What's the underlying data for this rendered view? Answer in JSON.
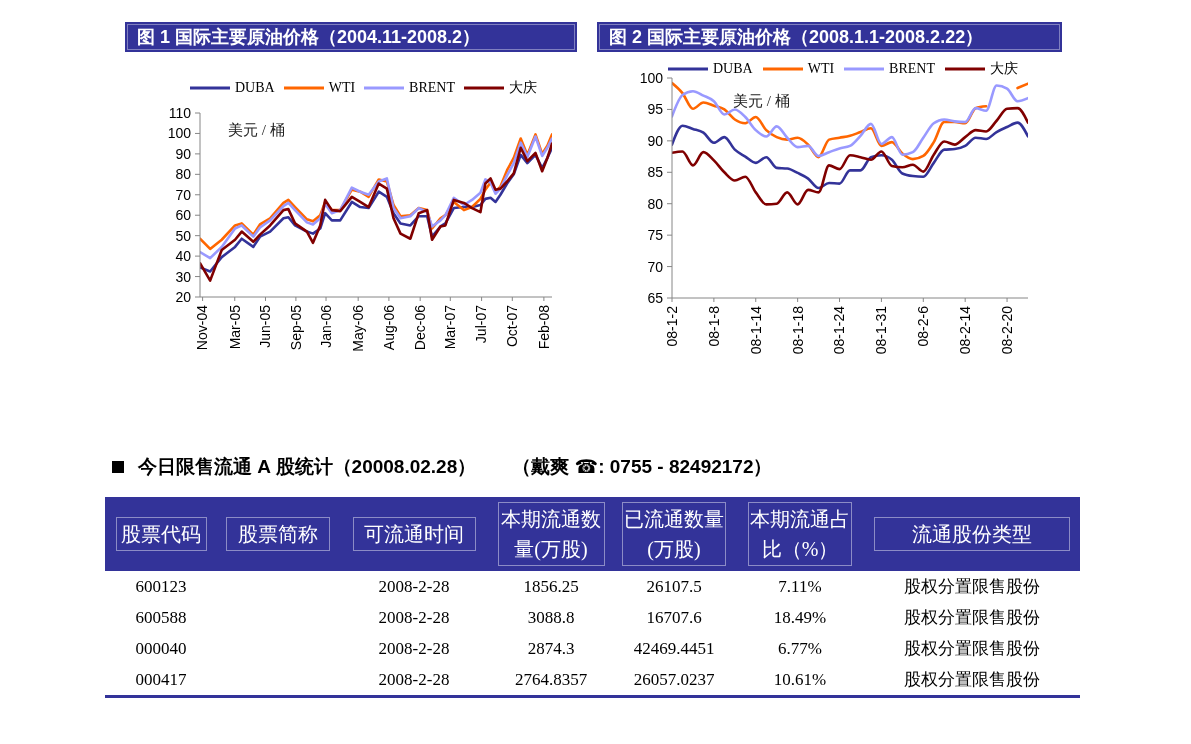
{
  "chart_data": [
    {
      "type": "line",
      "title": "图 1 国际主要原油价格（2004.11-2008.2）",
      "ylabel": "美元 / 桶",
      "x": [
        "2004-11-01",
        "2004-12-06",
        "2005-01-15",
        "2005-03-02",
        "2005-03-25",
        "2005-05-04",
        "2005-05-27",
        "2005-07-01",
        "2005-08-16",
        "2005-09-02",
        "2005-09-25",
        "2005-11-05",
        "2005-11-26",
        "2005-12-21",
        "2006-01-07",
        "2006-01-30",
        "2006-02-28",
        "2006-04-09",
        "2006-05-08",
        "2006-06-06",
        "2006-07-11",
        "2006-08-08",
        "2006-08-31",
        "2006-09-24",
        "2006-10-28",
        "2006-11-26",
        "2006-12-25",
        "2007-01-11",
        "2007-02-09",
        "2007-02-26",
        "2007-03-27",
        "2007-05-01",
        "2007-05-29",
        "2007-06-27",
        "2007-07-14",
        "2007-08-01",
        "2007-08-18",
        "2007-09-04",
        "2007-09-27",
        "2007-10-20",
        "2007-11-13",
        "2007-12-06",
        "2008-01-03",
        "2008-01-26",
        "2008-02-13",
        "2008-02-29"
      ],
      "series": [
        {
          "name": "DUBA",
          "color": "#333399",
          "values": [
            34.5,
            32.5,
            39.5,
            44.5,
            48.5,
            44.5,
            49.5,
            52,
            58.5,
            59,
            55,
            52,
            51,
            53.5,
            61,
            57.5,
            57.5,
            66.5,
            64,
            63.5,
            71.5,
            69,
            61,
            56,
            55,
            59.5,
            59.5,
            49.5,
            54.5,
            56,
            63.5,
            64,
            64,
            65,
            68,
            68.5,
            66.5,
            70,
            75.5,
            80,
            89.5,
            85.5,
            89.5,
            83,
            88,
            93
          ]
        },
        {
          "name": "WTI",
          "color": "#ff6600",
          "values": [
            48.5,
            43.5,
            48,
            55,
            56,
            50.5,
            55.5,
            58.5,
            66,
            67.5,
            64,
            58,
            57,
            60,
            66.5,
            62.5,
            62.5,
            72.5,
            71.5,
            69,
            77.5,
            76.5,
            65,
            59.5,
            60,
            63.5,
            62.5,
            53.5,
            58.5,
            60,
            66.5,
            62.5,
            64,
            68,
            72.5,
            76,
            71.5,
            74,
            82,
            88,
            97.5,
            89.5,
            99.5,
            90,
            94,
            99.5
          ]
        },
        {
          "name": "BRENT",
          "color": "#9999ff",
          "values": [
            42,
            39,
            44.5,
            53.5,
            55,
            49.5,
            54,
            57.5,
            64.5,
            66,
            62.5,
            56.5,
            55.5,
            58.5,
            65.5,
            61,
            62.5,
            73.5,
            71.5,
            70,
            76.5,
            78,
            63.5,
            58.5,
            59.5,
            63.5,
            61.5,
            54.5,
            57.5,
            60,
            68.5,
            65,
            67.5,
            71,
            77.5,
            76,
            70.5,
            73,
            79.5,
            85.5,
            95.5,
            88.5,
            98.5,
            89,
            93,
            97.5
          ]
        },
        {
          "name": "大庆",
          "color": "#800000",
          "values": [
            36.5,
            28,
            43,
            48,
            52,
            47,
            50.5,
            55,
            62.5,
            63,
            56,
            52,
            46.5,
            55,
            67.5,
            62.5,
            62,
            69,
            66.5,
            64,
            75.5,
            73,
            58.5,
            51,
            48.5,
            61,
            62.5,
            48,
            54.5,
            55,
            67.5,
            66,
            63.5,
            61.5,
            75.5,
            78,
            72.5,
            73,
            76.5,
            80.5,
            93,
            86.5,
            90.5,
            81.5,
            88,
            95
          ]
        }
      ],
      "xlim": [
        "2004-11-01",
        "2008-02-29"
      ],
      "xticks": [
        {
          "value": "2004-11-10",
          "label": "Nov-04"
        },
        {
          "value": "2005-03-01",
          "label": "Mar-05"
        },
        {
          "value": "2005-06-15",
          "label": "Jun-05"
        },
        {
          "value": "2005-09-28",
          "label": "Sep-05"
        },
        {
          "value": "2006-01-10",
          "label": "Jan-06"
        },
        {
          "value": "2006-05-01",
          "label": "May-06"
        },
        {
          "value": "2006-08-15",
          "label": "Aug-06"
        },
        {
          "value": "2006-12-01",
          "label": "Dec-06"
        },
        {
          "value": "2007-03-15",
          "label": "Mar-07"
        },
        {
          "value": "2007-07-01",
          "label": "Jul-07"
        },
        {
          "value": "2007-10-15",
          "label": "Oct-07"
        },
        {
          "value": "2008-02-01",
          "label": "Feb-08"
        }
      ],
      "ylim": [
        20,
        110
      ],
      "yticks": [
        20,
        30,
        40,
        50,
        60,
        70,
        80,
        90,
        100,
        110
      ],
      "legend": "top"
    },
    {
      "type": "line",
      "title": "图 2 国际主要原油价格（2008.1.1-2008.2.22）",
      "ylabel": "美元 / 桶",
      "categories": [
        "08-1-2",
        null,
        null,
        null,
        "08-1-8",
        null,
        null,
        null,
        "08-1-14",
        null,
        null,
        null,
        "08-1-18",
        null,
        null,
        null,
        "08-1-24",
        null,
        null,
        null,
        "08-1-31",
        null,
        null,
        null,
        "08-2-6",
        null,
        null,
        null,
        "08-2-14",
        null,
        null,
        null,
        "08-2-20",
        null,
        null
      ],
      "series": [
        {
          "name": "DUBA",
          "color": "#333399",
          "values": [
            89.4,
            92.4,
            91.9,
            91.3,
            89.7,
            90.6,
            88.6,
            87.5,
            86.5,
            87.4,
            85.7,
            85.6,
            84.9,
            84,
            82.5,
            83.3,
            83.2,
            85.3,
            85.3,
            87.4,
            87.7,
            87,
            84.8,
            84.4,
            84.3,
            86.5,
            88.6,
            88.7,
            89.2,
            90.5,
            90.3,
            91.4,
            92.2,
            92.9,
            90.7
          ]
        },
        {
          "name": "WTI",
          "color": "#ff6600",
          "values": [
            99.2,
            97.6,
            95.1,
            96.1,
            95.6,
            95,
            93.4,
            92.8,
            93.8,
            91.7,
            90.6,
            90.2,
            90.5,
            89.4,
            87.4,
            90.2,
            90.5,
            90.8,
            91.4,
            92,
            89.2,
            89.8,
            88,
            87.1,
            87.6,
            89.8,
            93,
            93,
            92.8,
            95.2,
            95.5,
            null,
            null,
            98.4,
            99.1
          ]
        },
        {
          "name": "BRENT",
          "color": "#9999ff",
          "values": [
            93.9,
            97.3,
            97.9,
            97.2,
            96.3,
            94.2,
            95,
            93.8,
            91.7,
            90.7,
            92.3,
            90.5,
            89,
            89.2,
            87.6,
            88.2,
            88.8,
            89.2,
            90.8,
            92.7,
            89.5,
            90.6,
            87.8,
            88.2,
            90.5,
            92.8,
            93.4,
            93.1,
            93,
            95.2,
            94.8,
            98.8,
            98.3,
            96.3,
            96.8
          ]
        },
        {
          "name": "大庆",
          "color": "#800000",
          "values": [
            88.1,
            88.3,
            86.1,
            88.2,
            86.9,
            85,
            83.7,
            84.3,
            81.8,
            79.9,
            80,
            81.8,
            79.9,
            82.2,
            81.8,
            86.1,
            85.5,
            87.7,
            87.4,
            87,
            88.3,
            86,
            85.8,
            86.2,
            85.1,
            87.8,
            89.9,
            89.4,
            90.6,
            91.7,
            91.5,
            93.2,
            95.1,
            95.2,
            92.9
          ]
        }
      ],
      "ylim": [
        65,
        100
      ],
      "yticks": [
        65,
        70,
        75,
        80,
        85,
        90,
        95,
        100
      ],
      "legend": "top"
    },
    {
      "type": "other",
      "title": "今日限售流通 A 股统计（20008.02.28）",
      "subtitle": "（戴爽 ☎: 0755 - 82492172）",
      "categories": [
        "股票代码",
        "股票简称",
        "可流通时间",
        "本期流通数量(万股)",
        "已流通数量(万股)",
        "本期流通占比（%）",
        "流通股份类型"
      ],
      "cell_labels": [
        [
          "600123",
          null,
          "2008-2-28",
          "1856.25",
          "26107.5",
          "7.11%",
          "股权分置限售股份"
        ],
        [
          "600588",
          null,
          "2008-2-28",
          "3088.8",
          "16707.6",
          "18.49%",
          "股权分置限售股份"
        ],
        [
          "000040",
          null,
          "2008-2-28",
          "2874.3",
          "42469.4451",
          "6.77%",
          "股权分置限售股份"
        ],
        [
          "000417",
          null,
          "2008-2-28",
          "2764.8357",
          "26057.0237",
          "10.61%",
          "股权分置限售股份"
        ]
      ]
    }
  ]
}
